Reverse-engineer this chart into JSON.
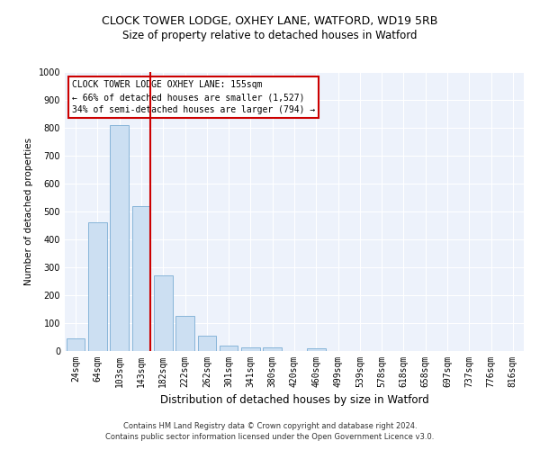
{
  "title1": "CLOCK TOWER LODGE, OXHEY LANE, WATFORD, WD19 5RB",
  "title2": "Size of property relative to detached houses in Watford",
  "xlabel": "Distribution of detached houses by size in Watford",
  "ylabel": "Number of detached properties",
  "categories": [
    "24sqm",
    "64sqm",
    "103sqm",
    "143sqm",
    "182sqm",
    "222sqm",
    "262sqm",
    "301sqm",
    "341sqm",
    "380sqm",
    "420sqm",
    "460sqm",
    "499sqm",
    "539sqm",
    "578sqm",
    "618sqm",
    "658sqm",
    "697sqm",
    "737sqm",
    "776sqm",
    "816sqm"
  ],
  "values": [
    45,
    460,
    810,
    520,
    270,
    125,
    55,
    20,
    12,
    12,
    0,
    10,
    0,
    0,
    0,
    0,
    0,
    0,
    0,
    0,
    0
  ],
  "bar_color": "#ccdff2",
  "bar_edge_color": "#7aadd4",
  "vline_color": "#cc0000",
  "vline_pos": 3.4,
  "annotation_text": "CLOCK TOWER LODGE OXHEY LANE: 155sqm\n← 66% of detached houses are smaller (1,527)\n34% of semi-detached houses are larger (794) →",
  "annotation_box_color": "#ffffff",
  "annotation_box_edge": "#cc0000",
  "ylim": [
    0,
    1000
  ],
  "yticks": [
    0,
    100,
    200,
    300,
    400,
    500,
    600,
    700,
    800,
    900,
    1000
  ],
  "footer1": "Contains HM Land Registry data © Crown copyright and database right 2024.",
  "footer2": "Contains public sector information licensed under the Open Government Licence v3.0.",
  "bg_color": "#edf2fb",
  "title1_fontsize": 9,
  "title2_fontsize": 8.5,
  "xlabel_fontsize": 8.5,
  "ylabel_fontsize": 7.5,
  "tick_fontsize": 7,
  "annot_fontsize": 7,
  "footer_fontsize": 6
}
